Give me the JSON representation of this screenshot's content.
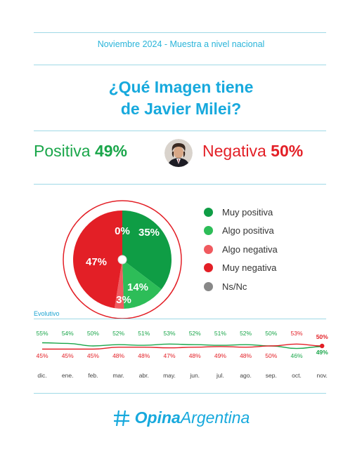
{
  "header": {
    "subtitle": "Noviembre 2024 - Muestra a nivel nacional",
    "title_line1": "¿Qué Imagen tiene",
    "title_line2": "de Javier Milei?"
  },
  "summary": {
    "positive_label": "Positiva",
    "positive_value": "49%",
    "negative_label": "Negativa",
    "negative_value": "50%"
  },
  "colors": {
    "accent": "#17a9dd",
    "positive": "#1aa64a",
    "negative": "#e31f26"
  },
  "chart_data": [
    {
      "type": "pie",
      "slices": [
        {
          "name": "Muy positiva",
          "value": 35,
          "label": "35%",
          "color": "#0f9d45"
        },
        {
          "name": "Algo positiva",
          "value": 14,
          "label": "14%",
          "color": "#2dbd58"
        },
        {
          "name": "Algo negativa",
          "value": 3,
          "label": "3%",
          "color": "#f05a5f"
        },
        {
          "name": "Muy negativa",
          "value": 47,
          "label": "47%",
          "color": "#e31f26"
        },
        {
          "name": "Ns/Nc",
          "value": 0,
          "label": "0%",
          "color": "#888888"
        }
      ]
    },
    {
      "type": "line",
      "title": "Evolutivo",
      "categories": [
        "dic.",
        "ene.",
        "feb.",
        "mar.",
        "abr.",
        "may.",
        "jun.",
        "jul.",
        "ago.",
        "sep.",
        "oct.",
        "nov."
      ],
      "series": [
        {
          "color": "#1aa64a",
          "values": [
            55,
            54,
            50,
            52,
            51,
            53,
            52,
            51,
            52,
            50,
            46,
            49
          ]
        },
        {
          "color": "#e31f26",
          "values": [
            45,
            45,
            45,
            48,
            48,
            47,
            48,
            49,
            48,
            50,
            53,
            50
          ]
        }
      ]
    }
  ],
  "logo": {
    "bold": "Opina",
    "regular": "Argentina"
  }
}
